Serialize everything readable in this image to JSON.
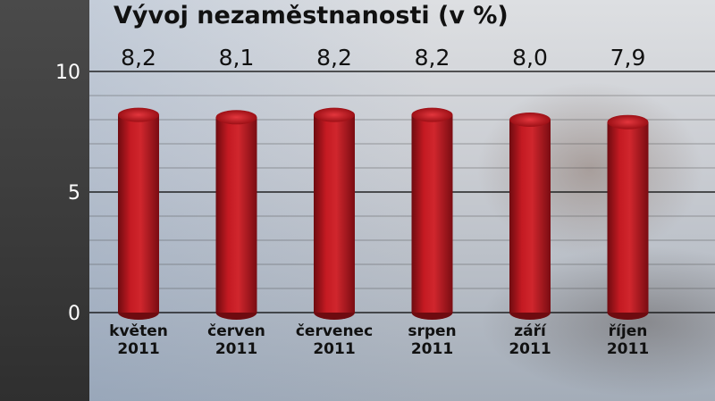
{
  "chart_data": {
    "type": "bar",
    "title": "Vývoj nezaměstnanosti (v %)",
    "categories": [
      [
        "květen",
        "2011"
      ],
      [
        "červen",
        "2011"
      ],
      [
        "červenec",
        "2011"
      ],
      [
        "srpen",
        "2011"
      ],
      [
        "září",
        "2011"
      ],
      [
        "říjen",
        "2011"
      ]
    ],
    "values": [
      8.2,
      8.1,
      8.2,
      8.2,
      8.0,
      7.9
    ],
    "value_labels": [
      "8,2",
      "8,1",
      "8,2",
      "8,2",
      "8,0",
      "7,9"
    ],
    "ylim": [
      0,
      10
    ],
    "yticks": [
      0,
      5,
      10
    ],
    "grid": true,
    "bar_color": "#b5121b"
  }
}
